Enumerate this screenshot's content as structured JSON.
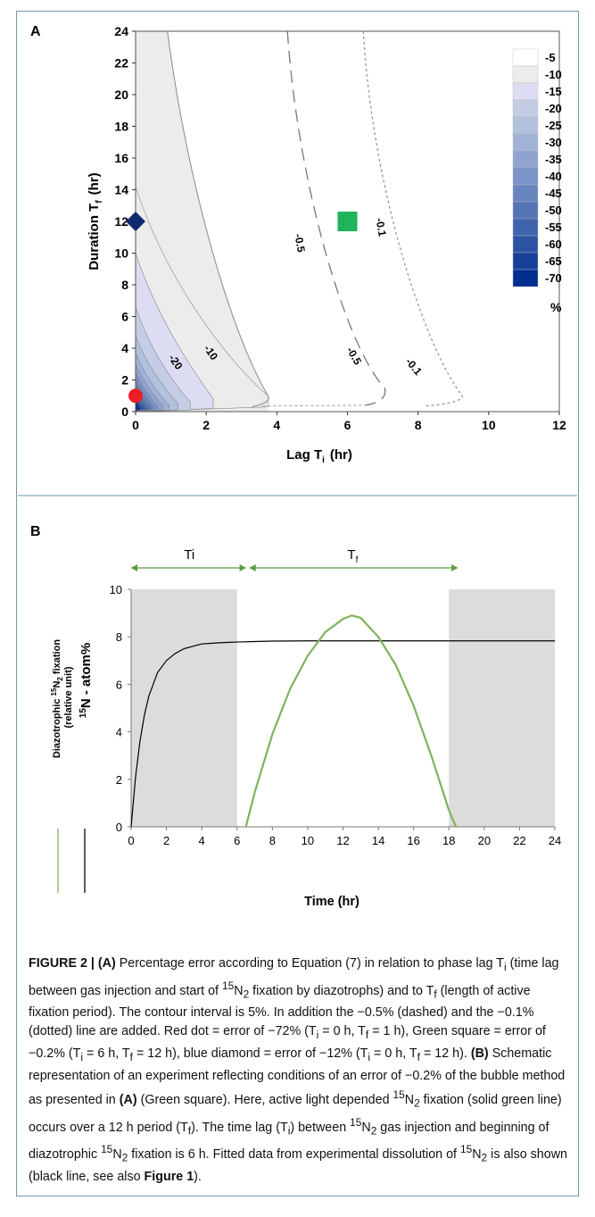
{
  "figure_label": "FIGURE 2 |",
  "chart_data": [
    {
      "panel": "A",
      "type": "heatmap",
      "subtype": "filled-contour",
      "xlabel_main": "Lag  T",
      "xlabel_sub": "i",
      "xlabel_unit": "(hr)",
      "ylabel_main": "Duration  T",
      "ylabel_sub": "f",
      "ylabel_unit": "(hr)",
      "xlim": [
        0,
        12
      ],
      "ylim": [
        0,
        24
      ],
      "xticks": [
        0,
        2,
        4,
        6,
        8,
        10,
        12
      ],
      "yticks": [
        0,
        2,
        4,
        6,
        8,
        10,
        12,
        14,
        16,
        18,
        20,
        22,
        24
      ],
      "colorbar": {
        "levels": [
          "-5",
          "-10",
          "-15",
          "-20",
          "-25",
          "-30",
          "-35",
          "-40",
          "-45",
          "-50",
          "-55",
          "-60",
          "-65",
          "-70"
        ],
        "colors": [
          "#ffffff",
          "#ececec",
          "#dcdcf2",
          "#c5cde6",
          "#b1c1de",
          "#a0b2d8",
          "#8ea3d0",
          "#7a93c8",
          "#6884bf",
          "#5474b6",
          "#4063ad",
          "#2c53a3",
          "#17409a",
          "#002e8f"
        ],
        "unit": "%"
      },
      "contour_labels": [
        "-0.5",
        "-0.1",
        "-0.5",
        "-0.1",
        "-20",
        "-10"
      ],
      "markers": [
        {
          "name": "red dot",
          "x": 0,
          "y": 1,
          "color": "#ee1c25"
        },
        {
          "name": "green square",
          "x": 6,
          "y": 12,
          "color": "#1fb35a"
        },
        {
          "name": "blue diamond",
          "x": 0,
          "y": 12,
          "color": "#0d2a6e"
        }
      ]
    },
    {
      "panel": "B",
      "type": "line",
      "xlabel": "Time (hr)",
      "xlim": [
        0,
        24
      ],
      "ylim": [
        0,
        10
      ],
      "xticks": [
        0,
        2,
        4,
        6,
        8,
        10,
        12,
        14,
        16,
        18,
        20,
        22,
        24
      ],
      "yticks": [
        0,
        2,
        4,
        6,
        8,
        10
      ],
      "shaded_regions": [
        [
          0,
          6
        ],
        [
          18,
          24
        ]
      ],
      "shade_color": "#dcdcdc",
      "intervals": [
        {
          "label": "Ti",
          "from": 0,
          "to": 6.6
        },
        {
          "label_main": "T",
          "label_sub": "f",
          "from": 6.6,
          "to": 18.5
        }
      ],
      "legend_green_label": "Diazotrophic ¹⁵N₂ fixation (relative unit)",
      "legend_black_label": "¹⁵N - atom%",
      "series": [
        {
          "color": "#000000",
          "x": [
            0,
            0.25,
            0.5,
            0.75,
            1,
            1.5,
            2,
            2.5,
            3,
            3.5,
            4,
            5,
            6,
            7,
            8,
            10,
            12,
            14,
            16,
            18,
            20,
            22,
            24
          ],
          "values": [
            0,
            2.1,
            3.6,
            4.7,
            5.5,
            6.5,
            7.0,
            7.3,
            7.5,
            7.6,
            7.7,
            7.75,
            7.78,
            7.8,
            7.82,
            7.83,
            7.83,
            7.83,
            7.83,
            7.83,
            7.83,
            7.83,
            7.83
          ]
        },
        {
          "color": "#7ab55c",
          "x": [
            6.5,
            7,
            8,
            9,
            10,
            11,
            12,
            12.5,
            13,
            14,
            15,
            16,
            17,
            18,
            18.4
          ],
          "values": [
            0,
            1.45,
            3.9,
            5.8,
            7.2,
            8.2,
            8.75,
            8.9,
            8.8,
            8.0,
            6.8,
            5.1,
            3.0,
            0.7,
            0
          ]
        }
      ]
    }
  ],
  "caption": {
    "title_a_label": "(A)",
    "text_1": " Percentage error according to Equation (7) in relation to phase lag T",
    "sub_i": "i",
    "text_2": " (time lag between gas injection and start of ",
    "sup_15": "15",
    "n2_n": "N",
    "n2_sub": "2",
    "text_3": " fixation by diazotrophs) and to T",
    "sub_f": "f",
    "text_4": " (length of active fixation period). The contour interval is 5%. In addition the −0.5% (dashed) and the −0.1% (dotted) line are added. Red dot = error of −72% (T",
    "text_5": " = 0 h, T",
    "text_6": " = 1 h), Green square = error of −0.2% (T",
    "text_7": " = 6 h, T",
    "text_8": " = 12 h), blue diamond = error of −12% (T",
    "text_9": " = 0 h, T",
    "text_10": " = 12 h). ",
    "b_label": "(B)",
    "text_11": " Schematic representation of an experiment reflecting conditions of an error of −0.2% of the bubble method as presented in ",
    "a_ref": "(A)",
    "text_12": " (Green square). Here, active light depended ",
    "text_13": " fixation (solid green line) occurs over a 12 h period (T",
    "text_14": "). The time lag (T",
    "text_15": ") between ",
    "text_16": " gas injection and beginning of diazotrophic ",
    "text_17": " fixation is 6 h. Fitted data from experimental dissolution of ",
    "text_18": " is also shown (black line, see also ",
    "fig1_ref": "Figure 1",
    "text_19": ")."
  }
}
